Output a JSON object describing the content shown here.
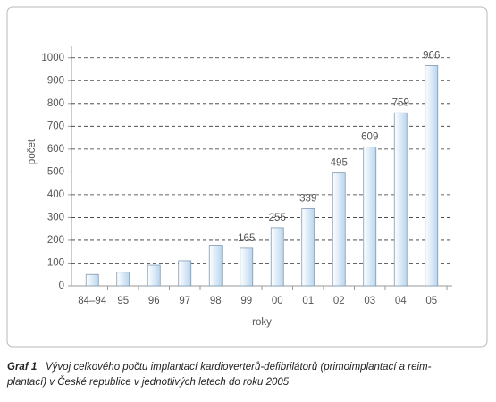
{
  "chart_data": {
    "type": "bar",
    "x_label": "roky",
    "y_label": "počet",
    "categories": [
      "84–94",
      "95",
      "96",
      "97",
      "98",
      "99",
      "00",
      "01",
      "02",
      "03",
      "04",
      "05"
    ],
    "values": [
      50,
      60,
      90,
      110,
      178,
      165,
      255,
      339,
      495,
      609,
      759,
      966
    ],
    "value_labels": [
      null,
      null,
      null,
      null,
      null,
      "165",
      "255",
      "339",
      "495",
      "609",
      "759",
      "966"
    ],
    "color": "#cfe3f2",
    "ylim": [
      0,
      1050
    ],
    "yticks": [
      0,
      100,
      200,
      300,
      400,
      500,
      600,
      700,
      800,
      900,
      1000
    ],
    "grid": true
  },
  "caption": {
    "label": "Graf 1",
    "lines": [
      "Vývoj celkového počtu implantací kardioverterů-defibrilátorů (primoimplantací a reim-",
      "plantací) v České republice v jednotlivých letech do roku 2005"
    ]
  }
}
